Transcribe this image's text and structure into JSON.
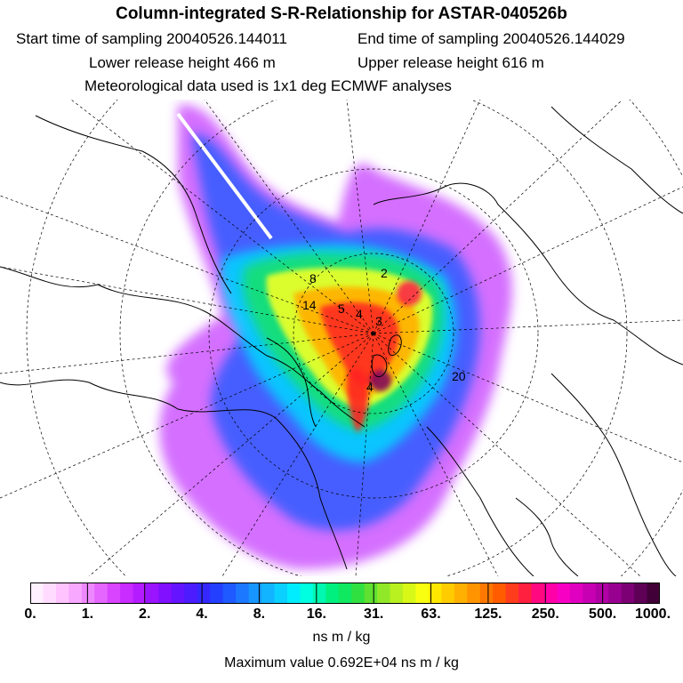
{
  "header": {
    "title": "Column-integrated S-R-Relationship for ASTAR-040526b",
    "start_time": "Start time of sampling 20040526.144011",
    "end_time": "End time of sampling 20040526.144029",
    "lower_release": "Lower release height  466 m",
    "upper_release": "Upper release height  616 m",
    "met_data": "Meteorological data used is 1x1 deg ECMWF analyses"
  },
  "map": {
    "projection": "polar stereographic, North Pole centred",
    "plume_levels_colors": [
      "#ffe0ff",
      "#c040ff",
      "#6020ff",
      "#2060ff",
      "#00d8ff",
      "#10e070",
      "#e0ff30",
      "#ffc000",
      "#ff2020",
      "#ff00a0",
      "#8a005c"
    ],
    "contour_labels": [
      "14",
      "5",
      "4",
      "3",
      "8",
      "2",
      "20",
      "4"
    ]
  },
  "colorbar": {
    "colors": [
      "#fff0ff",
      "#ffdcff",
      "#ffc4ff",
      "#f8a8ff",
      "#ee88ff",
      "#e466ff",
      "#d844ff",
      "#c92cff",
      "#b41cff",
      "#9a14ff",
      "#8010ff",
      "#6414ff",
      "#4c1cff",
      "#3428ff",
      "#2440ff",
      "#1e5aff",
      "#1c78ff",
      "#1896ff",
      "#12b4ff",
      "#0ad0ff",
      "#00ecff",
      "#00ffe0",
      "#00f8b0",
      "#00f080",
      "#10e860",
      "#30e040",
      "#60e030",
      "#90e828",
      "#b8f020",
      "#d8f818",
      "#f8ff10",
      "#ffe800",
      "#ffcc00",
      "#ffb000",
      "#ff9400",
      "#ff7800",
      "#ff5c00",
      "#ff3c1c",
      "#ff2040",
      "#ff0880",
      "#ff00a8",
      "#f800c4",
      "#e000c0",
      "#c800b4",
      "#b000a4",
      "#980090",
      "#7c0074",
      "#5e0056",
      "#420038"
    ],
    "tick_labels": [
      "0.",
      "1.",
      "2.",
      "4.",
      "8.",
      "16.",
      "31.",
      "63.",
      "125.",
      "250.",
      "500.",
      "1000."
    ],
    "units": "ns m / kg",
    "max_value": "Maximum value  0.692E+04 ns m / kg"
  }
}
